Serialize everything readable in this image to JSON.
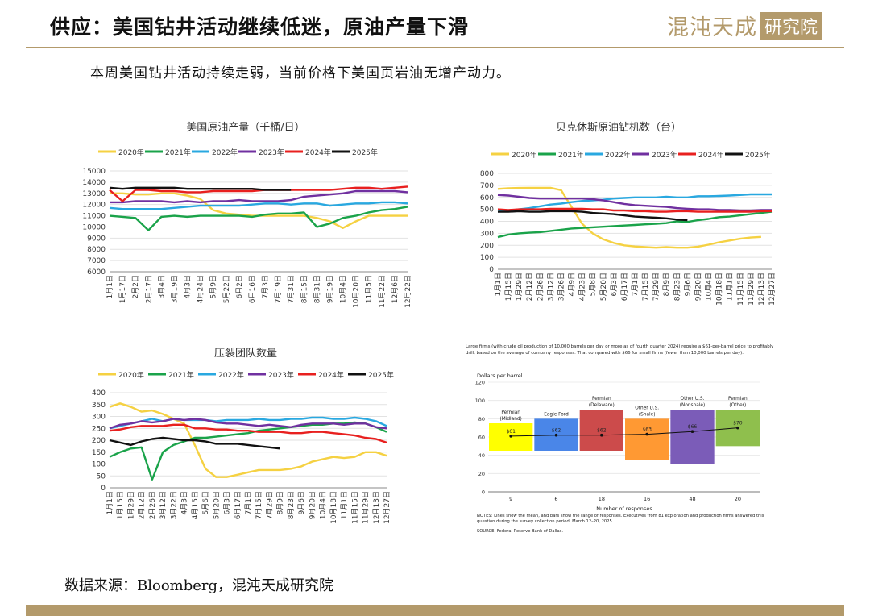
{
  "header": {
    "title": "供应：美国钻井活动继续低迷，原油产量下滑",
    "logo_script": "混沌天成",
    "logo_box": "研究院"
  },
  "subtitle": "本周美国钻井活动持续走弱，当前价格下美国页岩油无增产动力。",
  "source": "数据来源：Bloomberg，混沌天成研究院",
  "colors": {
    "y2020": "#f5d142",
    "y2021": "#1aa34a",
    "y2022": "#29a8e0",
    "y2023": "#7030a0",
    "y2024": "#e8201f",
    "y2025": "#111111",
    "accent": "#b39a6b"
  },
  "chart_data": [
    {
      "type": "line",
      "title": "美国原油产量（千桶/日）",
      "ylim": [
        6000,
        15000
      ],
      "yticks": [
        6000,
        7000,
        8000,
        9000,
        10000,
        11000,
        12000,
        13000,
        14000,
        15000
      ],
      "x": [
        "1月1日",
        "1月17日",
        "2月2日",
        "2月17日",
        "3月4日",
        "3月19日",
        "4月3日",
        "4月24日",
        "5月9日",
        "5月22日",
        "6月2日",
        "6月16日",
        "7月3日",
        "7月19日",
        "7月31日",
        "8月15日",
        "8月31日",
        "9月19日",
        "10月4日",
        "10月20日",
        "11月5日",
        "11月22日",
        "12月6日",
        "12月22日"
      ],
      "series": [
        {
          "name": "2020年",
          "values": [
            13000,
            13000,
            12900,
            12900,
            13000,
            13000,
            12800,
            12500,
            11500,
            11200,
            11100,
            11000,
            11000,
            11000,
            11000,
            11000,
            10800,
            10500,
            9900,
            10500,
            11000,
            11000,
            11000,
            11000
          ]
        },
        {
          "name": "2021年",
          "values": [
            11000,
            10900,
            10800,
            9700,
            10900,
            11000,
            10900,
            11000,
            11000,
            11000,
            11000,
            10900,
            11100,
            11200,
            11200,
            11300,
            10000,
            10300,
            10800,
            11000,
            11300,
            11500,
            11600,
            11800
          ]
        },
        {
          "name": "2022年",
          "values": [
            11700,
            11600,
            11600,
            11600,
            11600,
            11700,
            11800,
            11900,
            11900,
            11900,
            11900,
            12000,
            12100,
            12100,
            12000,
            12100,
            12100,
            11900,
            12000,
            12100,
            12100,
            12200,
            12200,
            12100
          ]
        },
        {
          "name": "2023年",
          "values": [
            12200,
            12200,
            12300,
            12300,
            12300,
            12200,
            12300,
            12200,
            12300,
            12300,
            12400,
            12300,
            12300,
            12300,
            12400,
            12700,
            12800,
            12900,
            13000,
            13200,
            13200,
            13200,
            13200,
            13100
          ]
        },
        {
          "name": "2024年",
          "values": [
            13300,
            12300,
            13300,
            13300,
            13200,
            13200,
            13100,
            13100,
            13200,
            13200,
            13200,
            13200,
            13300,
            13300,
            13300,
            13300,
            13300,
            13300,
            13400,
            13500,
            13500,
            13400,
            13500,
            13600
          ]
        },
        {
          "name": "2025年",
          "values": [
            13500,
            13400,
            13500,
            13500,
            13500,
            13500,
            13400,
            13400,
            13400,
            13400,
            13400,
            13400,
            13300,
            13300,
            13300,
            null,
            null,
            null,
            null,
            null,
            null,
            null,
            null,
            null
          ]
        }
      ]
    },
    {
      "type": "line",
      "title": "贝克休斯原油钻机数（台）",
      "ylim": [
        0,
        800
      ],
      "yticks": [
        0,
        100,
        200,
        300,
        400,
        500,
        600,
        700,
        800
      ],
      "x": [
        "1月1日",
        "1月15日",
        "1月29日",
        "2月12日",
        "2月26日",
        "3月12日",
        "3月26日",
        "4月9日",
        "4月23日",
        "5月8日",
        "5月20日",
        "6月3日",
        "6月17日",
        "7月1日",
        "7月15日",
        "7月29日",
        "8月9日",
        "8月23日",
        "9月6日",
        "9月20日",
        "10月4日",
        "10月18日",
        "11月1日",
        "11月15日",
        "11月29日",
        "12月13日",
        "12月27日"
      ],
      "series": [
        {
          "name": "2020年",
          "values": [
            670,
            676,
            678,
            680,
            679,
            680,
            660,
            520,
            380,
            300,
            250,
            220,
            200,
            190,
            185,
            180,
            185,
            180,
            180,
            189,
            205,
            225,
            240,
            255,
            265,
            270,
            null
          ]
        },
        {
          "name": "2021年",
          "values": [
            268,
            290,
            300,
            305,
            310,
            320,
            330,
            340,
            345,
            350,
            355,
            360,
            365,
            370,
            375,
            380,
            385,
            400,
            395,
            410,
            420,
            435,
            440,
            450,
            460,
            470,
            480
          ]
        },
        {
          "name": "2022年",
          "values": [
            480,
            490,
            500,
            510,
            525,
            540,
            548,
            560,
            570,
            575,
            580,
            590,
            595,
            600,
            600,
            600,
            605,
            600,
            600,
            610,
            610,
            612,
            615,
            620,
            625,
            625,
            625
          ]
        },
        {
          "name": "2023年",
          "values": [
            620,
            615,
            605,
            595,
            590,
            590,
            590,
            590,
            590,
            585,
            575,
            560,
            545,
            535,
            530,
            525,
            520,
            510,
            505,
            500,
            500,
            495,
            495,
            490,
            490,
            495,
            495
          ]
        },
        {
          "name": "2024年",
          "values": [
            500,
            495,
            500,
            500,
            500,
            505,
            505,
            505,
            505,
            500,
            500,
            490,
            490,
            485,
            485,
            480,
            480,
            485,
            485,
            480,
            480,
            480,
            480,
            480,
            480,
            485,
            485
          ]
        },
        {
          "name": "2025年",
          "values": [
            480,
            480,
            485,
            480,
            480,
            485,
            485,
            485,
            480,
            470,
            465,
            460,
            450,
            440,
            435,
            430,
            425,
            415,
            410,
            null,
            null,
            null,
            null,
            null,
            null,
            null,
            null
          ]
        }
      ]
    },
    {
      "type": "line",
      "title": "压裂团队数量",
      "ylim": [
        0,
        400
      ],
      "yticks": [
        0,
        50,
        100,
        150,
        200,
        250,
        300,
        350,
        400
      ],
      "x": [
        "1月1日",
        "1月15日",
        "1月29日",
        "2月12日",
        "2月26日",
        "3月12日",
        "3月22日",
        "4月3日",
        "4月15日",
        "5月6日",
        "5月20日",
        "6月3日",
        "6月17日",
        "7月1日",
        "7月15日",
        "7月29日",
        "8月9日",
        "8月23日",
        "9月6日",
        "9月20日",
        "10月4日",
        "10月18日",
        "11月1日",
        "11月15日",
        "11月29日",
        "12月13日",
        "12月27日"
      ],
      "series": [
        {
          "name": "2020年",
          "values": [
            340,
            355,
            340,
            320,
            325,
            310,
            290,
            270,
            180,
            80,
            45,
            45,
            55,
            65,
            75,
            75,
            75,
            80,
            90,
            110,
            120,
            130,
            125,
            130,
            150,
            150,
            135
          ]
        },
        {
          "name": "2021年",
          "values": [
            130,
            150,
            165,
            170,
            35,
            150,
            180,
            195,
            210,
            210,
            215,
            220,
            225,
            230,
            240,
            245,
            250,
            255,
            260,
            265,
            265,
            270,
            270,
            275,
            270,
            255,
            235
          ]
        },
        {
          "name": "2022年",
          "values": [
            250,
            260,
            270,
            280,
            290,
            280,
            290,
            285,
            285,
            285,
            280,
            285,
            285,
            285,
            290,
            285,
            285,
            290,
            290,
            295,
            295,
            290,
            290,
            295,
            290,
            280,
            260
          ]
        },
        {
          "name": "2023年",
          "values": [
            250,
            265,
            270,
            280,
            275,
            280,
            290,
            285,
            290,
            285,
            275,
            270,
            270,
            265,
            260,
            265,
            260,
            255,
            265,
            270,
            270,
            270,
            265,
            270,
            270,
            255,
            250
          ]
        },
        {
          "name": "2024年",
          "values": [
            240,
            245,
            255,
            260,
            260,
            260,
            265,
            265,
            250,
            250,
            245,
            245,
            240,
            240,
            235,
            235,
            235,
            230,
            230,
            235,
            235,
            230,
            225,
            220,
            210,
            205,
            190
          ]
        },
        {
          "name": "2025年",
          "values": [
            200,
            190,
            180,
            195,
            205,
            210,
            205,
            200,
            200,
            195,
            185,
            185,
            185,
            180,
            175,
            170,
            165,
            null,
            null,
            null,
            null,
            null,
            null,
            null,
            null,
            null,
            null
          ]
        }
      ]
    },
    {
      "type": "bar",
      "title": "Large firms (with crude oil production of 10,000 barrels per day or more as of fourth quarter 2024) require a $61-per-barrel price to profitably drill, based on the average of company responses. That compared with $66 for small firms (fewer than 10,000 barrels per day).",
      "ylabel": "Dollars per barrel",
      "xlabel": "Number of responses",
      "ylim": [
        0,
        120
      ],
      "yticks": [
        0,
        20,
        40,
        60,
        80,
        100,
        120
      ],
      "categories": [
        "Permian (Midland)",
        "Eagle Ford",
        "Permian (Delaware)",
        "Other U.S. (Shale)",
        "Other U.S. (Nonshale)",
        "Permian (Other)"
      ],
      "responses": [
        "9",
        "6",
        "18",
        "16",
        "48",
        "20"
      ],
      "means": [
        61,
        62,
        62,
        63,
        66,
        70
      ],
      "mean_labels": [
        "$61",
        "$62",
        "$62",
        "$63",
        "$66",
        "$70"
      ],
      "range_low": [
        45,
        45,
        45,
        35,
        30,
        50
      ],
      "range_high": [
        75,
        80,
        90,
        80,
        90,
        90
      ],
      "bar_colors": [
        "#ffff00",
        "#4a86e8",
        "#cc4b4b",
        "#ff9933",
        "#7b5cb8",
        "#8fbf4d"
      ],
      "notes": "NOTES: Lines show the mean, and bars show the range of responses. Executives from 81 exploration and production firms answered this question during the survey collection period, March 12–20, 2025.",
      "source_note": "SOURCE: Federal Reserve Bank of Dallas."
    }
  ]
}
